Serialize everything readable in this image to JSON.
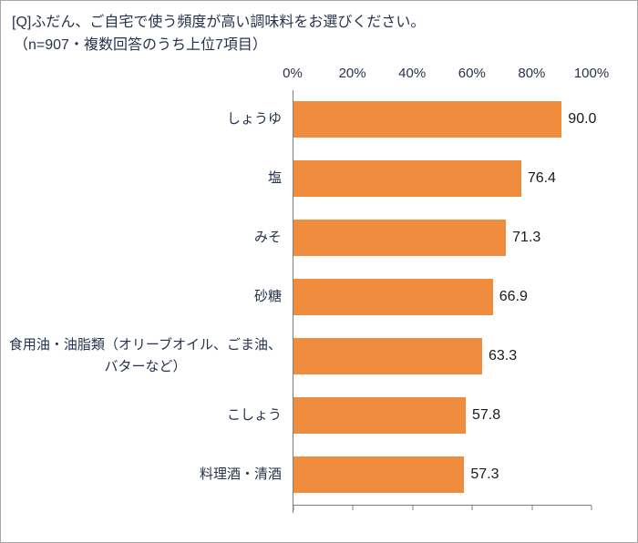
{
  "title": {
    "line1": "[Q]ふだん、ご自宅で使う頻度が高い調味料をお選びください。",
    "line2": "（n=907・複数回答のうち上位7項目）"
  },
  "colors": {
    "bar": "#f08c3e",
    "axis": "#7f7f7f",
    "text": "#26334d",
    "value_text": "#1a1a1a",
    "frame_border": "#a6a6a6"
  },
  "chart_data": {
    "type": "bar",
    "orientation": "horizontal",
    "title": "[Q]ふだん、ご自宅で使う頻度が高い調味料をお選びください。",
    "subtitle": "（n=907・複数回答のうち上位7項目）",
    "categories": [
      "しょうゆ",
      "塩",
      "みそ",
      "砂糖",
      "食用油・油脂類（オリーブオイル、ごま油、\nバターなど）",
      "こしょう",
      "料理酒・清酒"
    ],
    "values": [
      90.0,
      76.4,
      71.3,
      66.9,
      63.3,
      57.8,
      57.3
    ],
    "value_labels": [
      "90.0",
      "76.4",
      "71.3",
      "66.9",
      "63.3",
      "57.8",
      "57.3"
    ],
    "x_ticks": [
      "0%",
      "20%",
      "40%",
      "60%",
      "80%",
      "100%"
    ],
    "x_tick_positions": [
      0,
      20,
      40,
      60,
      80,
      100
    ],
    "xlim": [
      0,
      100
    ],
    "grid": false,
    "legend": false,
    "bar_color": "#f08c3e"
  }
}
